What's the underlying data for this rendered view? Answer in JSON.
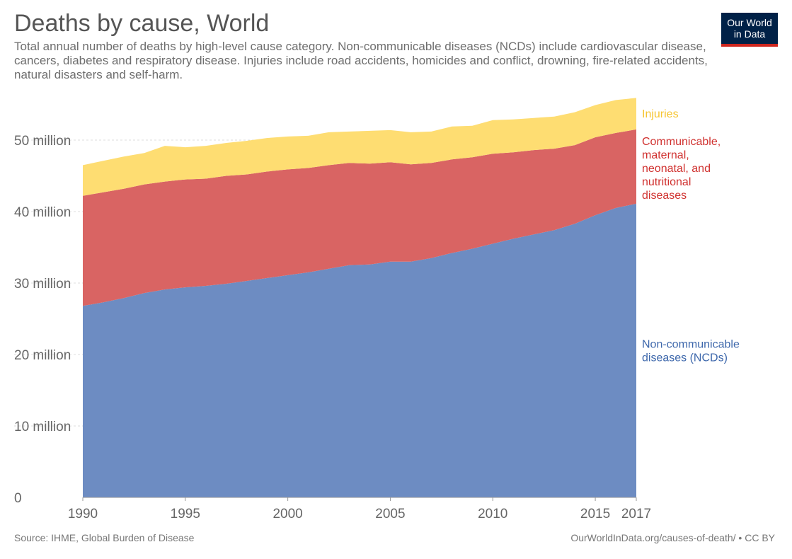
{
  "header": {
    "title": "Deaths by cause, World",
    "subtitle": "Total annual number of deaths by high-level cause category. Non-communicable diseases (NCDs) include cardiovascular disease, cancers, diabetes and respiratory disease. Injuries include road accidents, homicides and conflict, drowning, fire-related accidents, natural disasters and self-harm."
  },
  "logo": {
    "line1": "Our World",
    "line2": "in Data",
    "bg": "#002147",
    "accent": "#ce261e"
  },
  "footer": {
    "source": "Source: IHME, Global Burden of Disease",
    "url": "OurWorldInData.org/causes-of-death/ • CC BY"
  },
  "chart_data": {
    "type": "area",
    "stacked": true,
    "title": "Deaths by cause, World",
    "x": [
      1990,
      1991,
      1992,
      1993,
      1994,
      1995,
      1996,
      1997,
      1998,
      1999,
      2000,
      2001,
      2002,
      2003,
      2004,
      2005,
      2006,
      2007,
      2008,
      2009,
      2010,
      2011,
      2012,
      2013,
      2014,
      2015,
      2016,
      2017
    ],
    "xlim": [
      1990,
      2017
    ],
    "ylim": [
      0,
      50000000
    ],
    "xticks": [
      {
        "value": 1990,
        "label": "1990"
      },
      {
        "value": 1995,
        "label": "1995"
      },
      {
        "value": 2000,
        "label": "2000"
      },
      {
        "value": 2005,
        "label": "2005"
      },
      {
        "value": 2010,
        "label": "2010"
      },
      {
        "value": 2015,
        "label": "2015"
      },
      {
        "value": 2017,
        "label": "2017"
      }
    ],
    "yticks": [
      {
        "value": 0,
        "label": "0"
      },
      {
        "value": 10000000,
        "label": "10 million"
      },
      {
        "value": 20000000,
        "label": "20 million"
      },
      {
        "value": 30000000,
        "label": "30 million"
      },
      {
        "value": 40000000,
        "label": "40 million"
      },
      {
        "value": 50000000,
        "label": "50 million"
      }
    ],
    "grid": true,
    "series": [
      {
        "name": "Non-communicable diseases (NCDs)",
        "label_lines": [
          "Non-communicable",
          "diseases (NCDs)"
        ],
        "color": "#6d8cc2",
        "text_color": "#3d67ab",
        "values": [
          26.8,
          27.3,
          27.9,
          28.6,
          29.1,
          29.4,
          29.6,
          29.9,
          30.3,
          30.7,
          31.1,
          31.5,
          32.0,
          32.5,
          32.6,
          33.0,
          33.0,
          33.5,
          34.2,
          34.8,
          35.5,
          36.2,
          36.8,
          37.4,
          38.3,
          39.5,
          40.5,
          41.1
        ]
      },
      {
        "name": "Communicable, maternal, neonatal, and nutritional diseases",
        "label_lines": [
          "Communicable,",
          "maternal,",
          "neonatal, and",
          "nutritional",
          "diseases"
        ],
        "color": "#d96463",
        "text_color": "#d0312f",
        "values": [
          15.4,
          15.4,
          15.3,
          15.2,
          15.1,
          15.1,
          15.0,
          15.1,
          14.9,
          14.9,
          14.8,
          14.6,
          14.5,
          14.3,
          14.1,
          13.9,
          13.6,
          13.3,
          13.1,
          12.8,
          12.6,
          12.1,
          11.8,
          11.4,
          11.0,
          10.9,
          10.5,
          10.4
        ]
      },
      {
        "name": "Injuries",
        "label_lines": [
          "Injuries"
        ],
        "color": "#fedd72",
        "text_color": "#f6c531",
        "values": [
          4.3,
          4.4,
          4.5,
          4.4,
          5.0,
          4.5,
          4.6,
          4.6,
          4.7,
          4.7,
          4.6,
          4.5,
          4.6,
          4.4,
          4.6,
          4.5,
          4.5,
          4.4,
          4.6,
          4.4,
          4.7,
          4.6,
          4.5,
          4.5,
          4.6,
          4.5,
          4.6,
          4.4
        ]
      }
    ]
  }
}
